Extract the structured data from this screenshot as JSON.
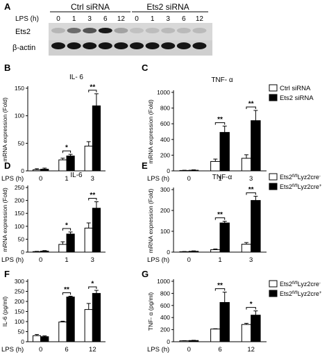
{
  "blot": {
    "letter": "A",
    "group_labels": [
      "Ctrl siRNA",
      "Ets2 siRNA"
    ],
    "lps_label": "LPS (h)",
    "lanes": [
      "0",
      "1",
      "3",
      "6",
      "12",
      "0",
      "1",
      "3",
      "6",
      "12"
    ],
    "rows": [
      {
        "label": "Ets2",
        "intensity": [
          0.12,
          0.5,
          0.62,
          0.92,
          0.22,
          0.06,
          0.08,
          0.1,
          0.1,
          0.1
        ]
      },
      {
        "label": "β-actin",
        "intensity": [
          0.95,
          0.95,
          0.95,
          0.95,
          0.95,
          0.95,
          0.95,
          0.95,
          0.95,
          0.95
        ]
      }
    ]
  },
  "legends": [
    {
      "entries": [
        {
          "label": "Ctrl siRNA",
          "color": "#ffffff"
        },
        {
          "label": "Ets2 siRNA",
          "color": "#000000"
        }
      ]
    },
    {
      "entries": [
        {
          "label": "Ets2",
          "sup": "fl/fl",
          "after": "Lyz2cre",
          "sup2": "-",
          "color": "#ffffff"
        },
        {
          "label": "Ets2",
          "sup": "fl/fl",
          "after": "Lyz2cre",
          "sup2": "+",
          "color": "#000000"
        }
      ]
    },
    {
      "entries": [
        {
          "label": "Ets2",
          "sup": "fl/fl",
          "after": "Lyz2cre",
          "sup2": "-",
          "color": "#ffffff"
        },
        {
          "label": "Ets2",
          "sup": "fl/fl",
          "after": "Lyz2cre",
          "sup2": "+",
          "color": "#000000"
        }
      ]
    }
  ],
  "chart_data": [
    {
      "letter": "B",
      "type": "bar",
      "title": "IL- 6",
      "xlabel": "LPS (h)",
      "ylabel": "mRNA expression (Fold)",
      "categories": [
        "0",
        "1",
        "3"
      ],
      "ylim": [
        0,
        150
      ],
      "yticks": [
        0,
        50,
        100,
        150
      ],
      "series": [
        {
          "values": [
            2,
            20,
            45
          ],
          "errors": [
            2,
            3,
            8
          ],
          "color": "#ffffff"
        },
        {
          "values": [
            3,
            27,
            118
          ],
          "errors": [
            2,
            3,
            22
          ],
          "color": "#000000"
        }
      ],
      "significance": [
        {
          "category": 1,
          "label": "*"
        },
        {
          "category": 2,
          "label": "**"
        }
      ]
    },
    {
      "letter": "C",
      "type": "bar",
      "title": "TNF- α",
      "xlabel": "LPS (h)",
      "ylabel": "mRNA expression (Fold)",
      "categories": [
        "0",
        "1",
        "3"
      ],
      "ylim": [
        0,
        1000
      ],
      "yticks": [
        0,
        200,
        400,
        600,
        800,
        1000
      ],
      "series": [
        {
          "values": [
            5,
            120,
            160
          ],
          "errors": [
            3,
            30,
            45
          ],
          "color": "#ffffff"
        },
        {
          "values": [
            8,
            490,
            640
          ],
          "errors": [
            5,
            80,
            130
          ],
          "color": "#000000"
        }
      ],
      "significance": [
        {
          "category": 1,
          "label": "**"
        },
        {
          "category": 2,
          "label": "**"
        }
      ]
    },
    {
      "letter": "D",
      "type": "bar",
      "title": "IL-6",
      "xlabel": "LPS (h)",
      "ylabel": "mRNA expression (Fold)",
      "categories": [
        "0",
        "1",
        "3"
      ],
      "ylim": [
        0,
        250
      ],
      "yticks": [
        0,
        50,
        100,
        150,
        200,
        250
      ],
      "series": [
        {
          "values": [
            2,
            30,
            93
          ],
          "errors": [
            1,
            10,
            20
          ],
          "color": "#ffffff"
        },
        {
          "values": [
            4,
            70,
            170
          ],
          "errors": [
            2,
            8,
            25
          ],
          "color": "#000000"
        }
      ],
      "significance": [
        {
          "category": 1,
          "label": "*"
        },
        {
          "category": 2,
          "label": "**"
        }
      ]
    },
    {
      "letter": "E",
      "type": "bar",
      "title": "TNF-α",
      "xlabel": "LPS (h)",
      "ylabel": "mRNA expression (Fold)",
      "categories": [
        "0",
        "1",
        "3"
      ],
      "ylim": [
        0,
        300
      ],
      "yticks": [
        0,
        100,
        200,
        300
      ],
      "series": [
        {
          "values": [
            2,
            12,
            38
          ],
          "errors": [
            1,
            3,
            8
          ],
          "color": "#ffffff"
        },
        {
          "values": [
            4,
            140,
            248
          ],
          "errors": [
            2,
            8,
            20
          ],
          "color": "#000000"
        }
      ],
      "significance": [
        {
          "category": 1,
          "label": "**"
        },
        {
          "category": 2,
          "label": "**"
        }
      ]
    },
    {
      "letter": "F",
      "type": "bar",
      "title": "",
      "xlabel": "LPS (h)",
      "ylabel": "IL-6 (pg/ml)",
      "categories": [
        "0",
        "6",
        "12"
      ],
      "ylim": [
        0,
        300
      ],
      "yticks": [
        0,
        50,
        100,
        150,
        200,
        250,
        300
      ],
      "series": [
        {
          "values": [
            30,
            98,
            160
          ],
          "errors": [
            6,
            4,
            30
          ],
          "color": "#ffffff"
        },
        {
          "values": [
            25,
            222,
            240
          ],
          "errors": [
            4,
            4,
            15
          ],
          "color": "#000000"
        }
      ],
      "significance": [
        {
          "category": 1,
          "label": "**"
        },
        {
          "category": 2,
          "label": "*"
        }
      ]
    },
    {
      "letter": "G",
      "type": "bar",
      "title": "",
      "xlabel": "LPS (h)",
      "ylabel": "TNF- α (pg/ml)",
      "categories": [
        "0",
        "6",
        "12"
      ],
      "ylim": [
        0,
        1000
      ],
      "yticks": [
        0,
        200,
        400,
        600,
        800,
        1000
      ],
      "series": [
        {
          "values": [
            15,
            210,
            285
          ],
          "errors": [
            3,
            5,
            20
          ],
          "color": "#ffffff"
        },
        {
          "values": [
            20,
            650,
            440
          ],
          "errors": [
            4,
            170,
            70
          ],
          "color": "#000000"
        }
      ],
      "significance": [
        {
          "category": 1,
          "label": "**"
        },
        {
          "category": 2,
          "label": "*"
        }
      ]
    }
  ]
}
